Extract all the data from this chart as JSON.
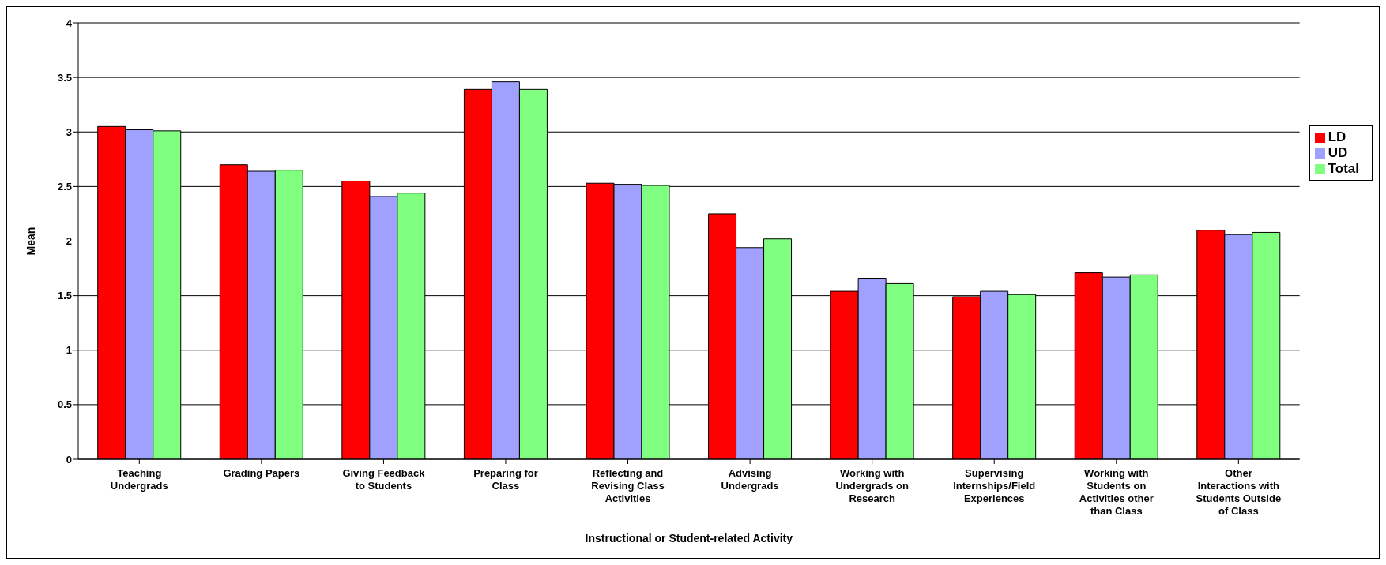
{
  "chart_data": {
    "type": "bar",
    "xlabel": "Instructional or Student-related Activity",
    "ylabel": "Mean",
    "categories": [
      "Teaching Undergrads",
      "Grading Papers",
      "Giving Feedback to Students",
      "Preparing for Class",
      "Reflecting and Revising Class Activities",
      "Advising Undergrads",
      "Working with Undergrads on Research",
      "Supervising Internships/Field Experiences",
      "Working with Students on Activities other than Class",
      "Other Interactions with Students Outside of Class"
    ],
    "series": [
      {
        "name": "LD",
        "color": "#ff0000",
        "values": [
          3.05,
          2.7,
          2.55,
          3.39,
          2.53,
          2.25,
          1.54,
          1.49,
          1.71,
          2.1
        ]
      },
      {
        "name": "UD",
        "color": "#a0a0ff",
        "values": [
          3.02,
          2.64,
          2.41,
          3.46,
          2.52,
          1.94,
          1.66,
          1.54,
          1.67,
          2.06
        ]
      },
      {
        "name": "Total",
        "color": "#80ff80",
        "values": [
          3.01,
          2.65,
          2.44,
          3.39,
          2.51,
          2.02,
          1.61,
          1.51,
          1.69,
          2.08
        ]
      }
    ],
    "ylim": [
      0,
      4
    ],
    "yticks": [
      0,
      0.5,
      1,
      1.5,
      2,
      2.5,
      3,
      3.5,
      4
    ],
    "grid": "y",
    "legend": "right"
  }
}
